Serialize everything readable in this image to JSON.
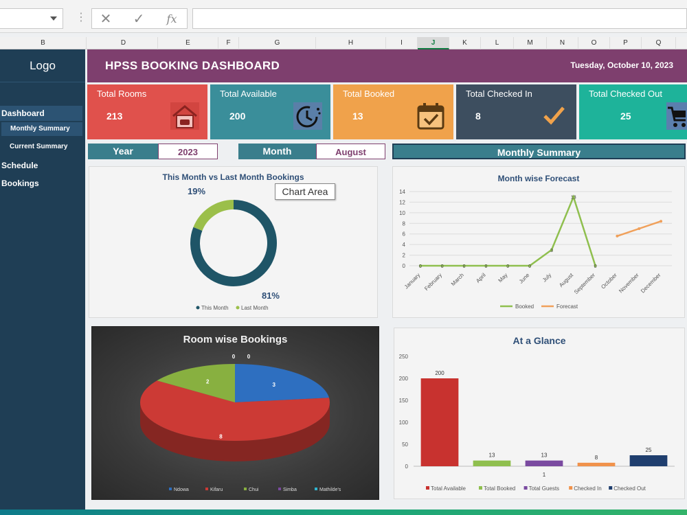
{
  "formula_bar": {
    "cancel_icon": "✕",
    "enter_icon": "✓",
    "fx_label": "fx"
  },
  "columns": [
    "B",
    "D",
    "E",
    "F",
    "G",
    "H",
    "I",
    "J",
    "K",
    "L",
    "M",
    "N",
    "O",
    "P",
    "Q"
  ],
  "sidebar": {
    "logo": "Logo",
    "items": [
      {
        "label": "Dashboard"
      },
      {
        "label": "Monthly Summary"
      },
      {
        "label": "Current Summary"
      },
      {
        "label": "Schedule"
      },
      {
        "label": "Bookings"
      }
    ]
  },
  "header": {
    "title": "HPSS BOOKING DASHBOARD",
    "date": "Tuesday, October 10, 2023"
  },
  "cards": [
    {
      "label": "Total Rooms",
      "value": "213",
      "color": "#e0514c",
      "icon": "house-icon"
    },
    {
      "label": "Total Available",
      "value": "200",
      "color": "#3a8e9a",
      "icon": "clock-icon"
    },
    {
      "label": "Total Booked",
      "value": "13",
      "color": "#f0a24b",
      "icon": "calendar-check-icon"
    },
    {
      "label": "Total Checked In",
      "value": "8",
      "color": "#3d4e5f",
      "icon": "checkmark-icon"
    },
    {
      "label": "Total Checked Out",
      "value": "25",
      "color": "#1eb39a",
      "icon": "cart-icon"
    }
  ],
  "filters": {
    "year_label": "Year",
    "year_value": "2023",
    "month_label": "Month",
    "month_value": "August",
    "summary_label": "Monthly Summary"
  },
  "tooltip": "Chart Area",
  "chart_data": [
    {
      "type": "donut",
      "title": "This Month vs Last Month Bookings",
      "slices": [
        {
          "name": "This Month",
          "value": 81,
          "label": "81%",
          "color": "#1f5567"
        },
        {
          "name": "Last Month",
          "value": 19,
          "label": "19%",
          "color": "#9bbf4a"
        }
      ]
    },
    {
      "type": "line",
      "title": "Month wise Forecast",
      "categories": [
        "January",
        "February",
        "March",
        "April",
        "May",
        "June",
        "July",
        "August",
        "September",
        "October",
        "November",
        "December"
      ],
      "ylim": [
        0,
        14
      ],
      "yticks": [
        0,
        2,
        4,
        6,
        8,
        10,
        12,
        14
      ],
      "series": [
        {
          "name": "Booked",
          "color": "#8fbf4e",
          "values": [
            0,
            0,
            0,
            0,
            0,
            0,
            3,
            13,
            0,
            null,
            null,
            null
          ]
        },
        {
          "name": "Forecast",
          "color": "#f0a05a",
          "values": [
            null,
            null,
            null,
            null,
            null,
            null,
            null,
            null,
            null,
            5.6,
            7,
            8.4
          ]
        }
      ]
    },
    {
      "type": "pie",
      "title": "Room wise Bookings",
      "slices": [
        {
          "name": "Ndowa",
          "value": 3,
          "color": "#2e6fc0"
        },
        {
          "name": "Kifaru",
          "value": 8,
          "color": "#cc3a35"
        },
        {
          "name": "Chui",
          "value": 2,
          "color": "#88b040"
        },
        {
          "name": "Simba",
          "value": 0,
          "color": "#7a4aa0"
        },
        {
          "name": "Mathilde's",
          "value": 0,
          "color": "#2fb5d0"
        }
      ]
    },
    {
      "type": "bar",
      "title": "At a Glance",
      "categories": [
        "Total Available",
        "Total Booked",
        "Total Guests",
        "Checked In",
        "Checked Out"
      ],
      "values": [
        200,
        13,
        13,
        8,
        25
      ],
      "colors": [
        "#c8322f",
        "#8fbf4e",
        "#7a4aa0",
        "#f0924b",
        "#1f3e6e"
      ],
      "ylim": [
        0,
        250
      ],
      "yticks": [
        0,
        50,
        100,
        150,
        200,
        250
      ],
      "extra_label": "1"
    }
  ]
}
